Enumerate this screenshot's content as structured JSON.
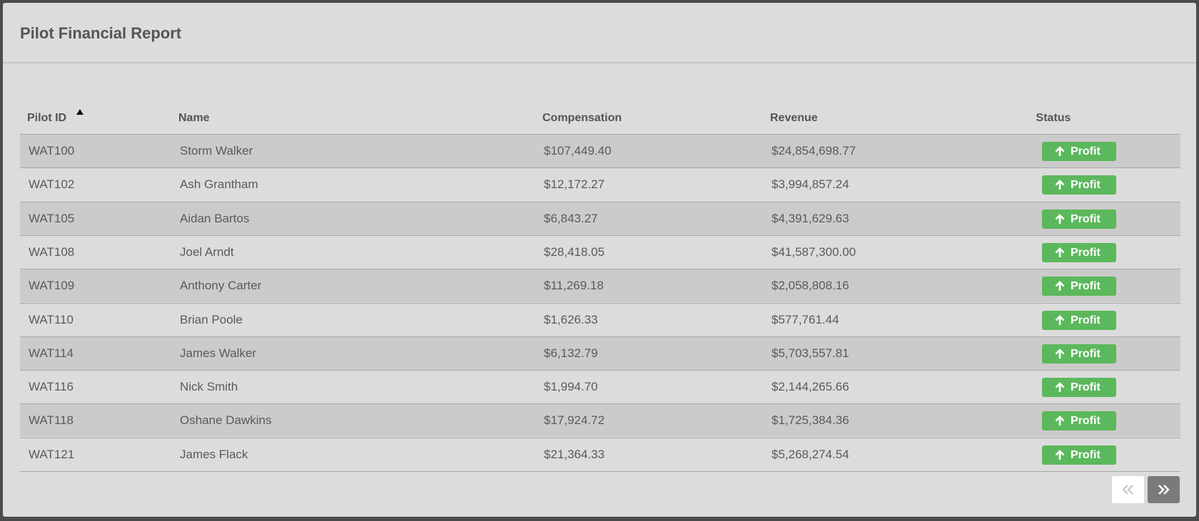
{
  "header": {
    "title": "Pilot Financial Report"
  },
  "table": {
    "columns": [
      "Pilot ID",
      "Name",
      "Compensation",
      "Revenue",
      "Status"
    ],
    "rows": [
      [
        "WAT100",
        "Storm Walker",
        "$107,449.40",
        "$24,854,698.77",
        "Profit"
      ],
      [
        "WAT102",
        "Ash Grantham",
        "$12,172.27",
        "$3,994,857.24",
        "Profit"
      ],
      [
        "WAT105",
        "Aidan Bartos",
        "$6,843.27",
        "$4,391,629.63",
        "Profit"
      ],
      [
        "WAT108",
        "Joel Arndt",
        "$28,418.05",
        "$41,587,300.00",
        "Profit"
      ],
      [
        "WAT109",
        "Anthony Carter",
        "$11,269.18",
        "$2,058,808.16",
        "Profit"
      ],
      [
        "WAT110",
        "Brian Poole",
        "$1,626.33",
        "$577,761.44",
        "Profit"
      ],
      [
        "WAT114",
        "James Walker",
        "$6,132.79",
        "$5,703,557.81",
        "Profit"
      ],
      [
        "WAT116",
        "Nick Smith",
        "$1,994.70",
        "$2,144,265.66",
        "Profit"
      ],
      [
        "WAT118",
        "Oshane Dawkins",
        "$17,924.72",
        "$1,725,384.36",
        "Profit"
      ],
      [
        "WAT121",
        "James Flack",
        "$21,364.33",
        "$5,268,274.54",
        "Profit"
      ]
    ]
  }
}
